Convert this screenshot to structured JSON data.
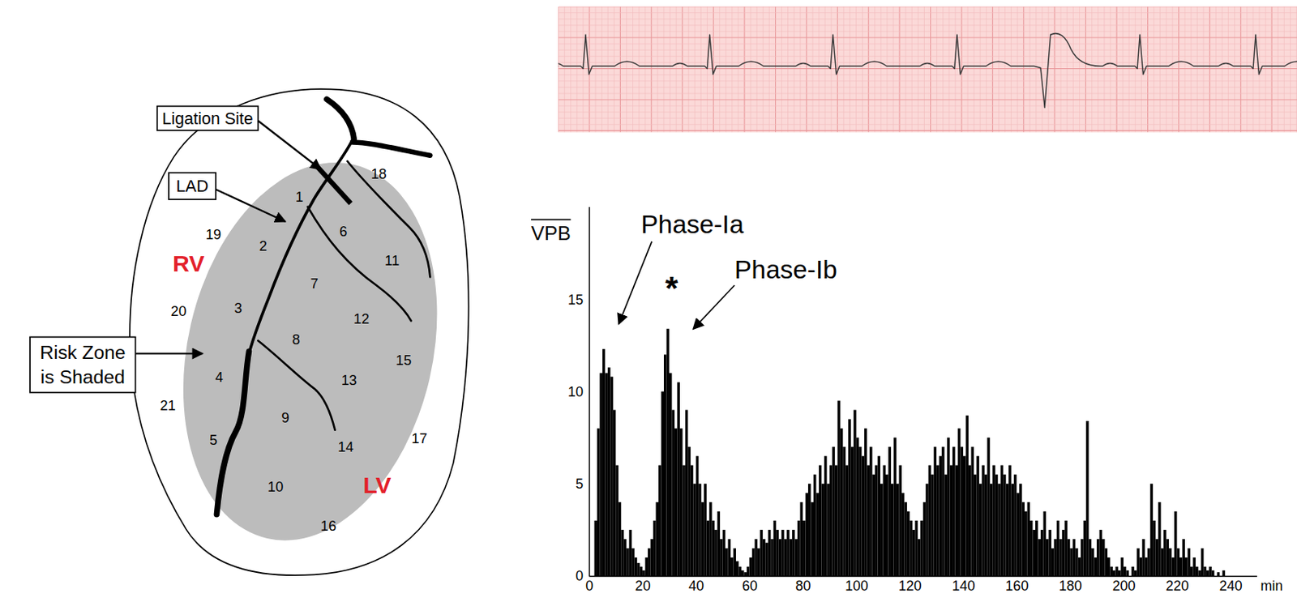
{
  "diagram": {
    "labels": {
      "ligation_site": "Ligation Site",
      "lad": "LAD",
      "risk_zone": [
        "Risk Zone",
        "is Shaded"
      ],
      "rv": "RV",
      "lv": "LV"
    },
    "segments": [
      1,
      2,
      3,
      4,
      5,
      6,
      7,
      8,
      9,
      10,
      11,
      12,
      13,
      14,
      15,
      16,
      17,
      18,
      19,
      20,
      21
    ]
  },
  "chart_data": {
    "type": "histogram",
    "y_label": "VPB",
    "x_label": "min",
    "color": "#000000",
    "bins": [
      0,
      1,
      2,
      3,
      4,
      5,
      6,
      7,
      8,
      9,
      10,
      11,
      12,
      13,
      14,
      15,
      16,
      17,
      18,
      19,
      20,
      21,
      22,
      23,
      24,
      25,
      26,
      27,
      28,
      29,
      30,
      31,
      32,
      33,
      34,
      35,
      36,
      37,
      38,
      39,
      40,
      41,
      42,
      43,
      44,
      45,
      46,
      47,
      48,
      49,
      50,
      51,
      52,
      53,
      54,
      55,
      56,
      57,
      58,
      59,
      60,
      61,
      62,
      63,
      64,
      65,
      66,
      67,
      68,
      69,
      70,
      71,
      72,
      73,
      74,
      75,
      76,
      77,
      78,
      79,
      80,
      81,
      82,
      83,
      84,
      85,
      86,
      87,
      88,
      89,
      90,
      91,
      92,
      93,
      94,
      95,
      96,
      97,
      98,
      99,
      100,
      101,
      102,
      103,
      104,
      105,
      106,
      107,
      108,
      109,
      110,
      111,
      112,
      113,
      114,
      115,
      116,
      117,
      118,
      119,
      120,
      121,
      122,
      123,
      124,
      125,
      126,
      127,
      128,
      129,
      130,
      131,
      132,
      133,
      134,
      135,
      136,
      137,
      138,
      139,
      140,
      141,
      142,
      143,
      144,
      145,
      146,
      147,
      148,
      149,
      150,
      151,
      152,
      153,
      154,
      155,
      156,
      157,
      158,
      159,
      160,
      161,
      162,
      163,
      164,
      165,
      166,
      167,
      168,
      169,
      170,
      171,
      172,
      173,
      174,
      175,
      176,
      177,
      178,
      179,
      180,
      181,
      182,
      183,
      184,
      185,
      186,
      187,
      188,
      189,
      190,
      191,
      192,
      193,
      194,
      195,
      196,
      197,
      198,
      199,
      200,
      201,
      202,
      203,
      204,
      205,
      206,
      207,
      208,
      209,
      210,
      211,
      212,
      213,
      214,
      215,
      216,
      217,
      218,
      219,
      220,
      221,
      222,
      223,
      224,
      225,
      226,
      227,
      228,
      229,
      230,
      231,
      232,
      233,
      234,
      235,
      236,
      237,
      238,
      239,
      240,
      241
    ],
    "values": [
      0,
      0,
      3,
      8,
      11,
      12.3,
      11,
      11.3,
      10.8,
      9,
      6,
      4,
      2.5,
      2,
      1.5,
      2.5,
      1.5,
      1,
      0.7,
      0.5,
      0.3,
      1,
      1.5,
      2,
      3,
      4,
      6,
      10,
      12,
      13.4,
      11,
      9,
      8,
      10.5,
      8,
      6,
      9,
      7,
      6,
      5,
      6.5,
      5,
      4,
      5,
      3,
      4,
      3,
      2.5,
      3.5,
      2,
      2.5,
      1.5,
      2,
      1,
      1.5,
      0.8,
      0.5,
      0.3,
      0.2,
      0.5,
      1,
      1.5,
      2,
      1.5,
      2.5,
      2,
      1.8,
      2.5,
      2,
      3,
      2.5,
      2,
      2.5,
      2,
      2.5,
      2,
      2.5,
      2,
      3,
      4,
      3,
      4.5,
      5,
      4,
      5.5,
      4.5,
      6,
      5,
      6.5,
      5,
      6,
      7,
      6,
      9.5,
      8,
      7,
      6,
      8.5,
      7,
      9,
      7.5,
      7,
      6.5,
      8,
      6,
      7,
      5.5,
      6,
      6.5,
      5,
      6,
      5.5,
      7,
      5,
      7.5,
      5,
      6,
      4.5,
      4,
      3.5,
      3,
      2.5,
      3,
      2,
      3,
      4,
      5,
      6,
      5.5,
      7,
      6,
      6.5,
      7,
      5.5,
      7.5,
      6,
      7,
      6,
      8,
      7,
      6.5,
      8.7,
      6,
      7,
      5.5,
      6.5,
      5,
      6,
      5.5,
      7.5,
      5,
      6,
      5.5,
      5,
      6,
      5.5,
      5,
      6,
      5,
      5.5,
      4.5,
      5,
      4,
      3.5,
      4,
      3,
      2.5,
      3,
      2,
      2.5,
      3.5,
      2,
      2.5,
      1.5,
      2,
      3,
      2,
      2.5,
      3,
      2,
      1.5,
      2,
      1.5,
      1,
      2,
      3,
      8.4,
      2,
      1.5,
      1,
      2,
      2.5,
      2,
      1.5,
      1,
      0.5,
      0.3,
      0.5,
      0.3,
      1,
      0.5,
      0.3,
      0,
      0.5,
      0.3,
      1.5,
      1,
      2,
      1,
      1.5,
      5,
      3,
      2,
      4,
      1.5,
      2.5,
      2,
      1.5,
      1,
      3.5,
      1.5,
      1,
      2,
      1,
      1.5,
      0.5,
      1,
      0.5,
      0.3,
      1.5,
      0.5,
      0.3,
      0.5,
      0.3,
      0,
      0.2,
      0,
      0.3,
      0,
      0,
      0
    ],
    "xlim": [
      0,
      250
    ],
    "xticks": [
      0,
      20,
      40,
      60,
      80,
      100,
      120,
      140,
      160,
      180,
      200,
      220,
      240
    ],
    "ylim": [
      0,
      20
    ],
    "yticks": [
      0,
      5,
      10,
      15
    ],
    "annotations": [
      "Phase-Ia",
      "Phase-Ib",
      "*"
    ]
  }
}
